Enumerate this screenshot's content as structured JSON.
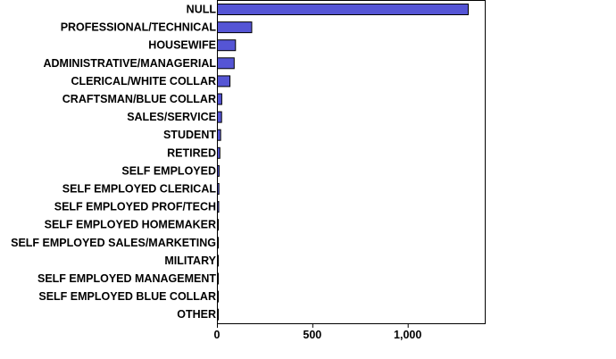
{
  "chart_data": {
    "type": "bar",
    "orientation": "horizontal",
    "categories": [
      "NULL",
      "PROFESSIONAL/TECHNICAL",
      "HOUSEWIFE",
      "ADMINISTRATIVE/MANAGERIAL",
      "CLERICAL/WHITE COLLAR",
      "CRAFTSMAN/BLUE COLLAR",
      "SALES/SERVICE",
      "STUDENT",
      "RETIRED",
      "SELF EMPLOYED",
      "SELF EMPLOYED CLERICAL",
      "SELF EMPLOYED PROF/TECH",
      "SELF EMPLOYED HOMEMAKER",
      "SELF EMPLOYED SALES/MARKETING",
      "MILITARY",
      "SELF EMPLOYED MANAGEMENT",
      "SELF EMPLOYED BLUE COLLAR",
      "OTHER"
    ],
    "values": [
      1315,
      180,
      95,
      88,
      66,
      23,
      22,
      17,
      13,
      9,
      8,
      7,
      4,
      3,
      2,
      2,
      1,
      1
    ],
    "x_ticks": [
      {
        "value": 0,
        "label": "0"
      },
      {
        "value": 500,
        "label": "500"
      },
      {
        "value": 1000,
        "label": "1,000"
      }
    ],
    "xlim": [
      0,
      1400
    ],
    "title": "",
    "xlabel": "",
    "ylabel": "",
    "grid": false,
    "bar_color": "#5555d5"
  }
}
